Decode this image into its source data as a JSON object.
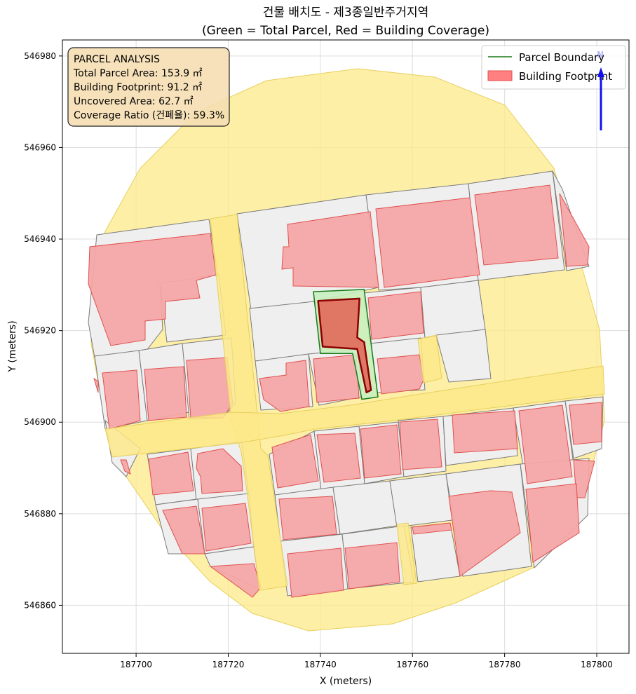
{
  "title": {
    "line1": "건물 배치도 - 제3종일반주거지역",
    "line2": "(Green = Total Parcel, Red = Building Coverage)"
  },
  "axes": {
    "xlabel": "X (meters)",
    "ylabel": "Y (meters)",
    "xlim": [
      187684,
      187807
    ],
    "ylim": [
      546849.5,
      546983.5
    ],
    "x_ticks": [
      187700,
      187720,
      187740,
      187760,
      187780,
      187800
    ],
    "y_ticks": [
      546860,
      546880,
      546900,
      546920,
      546940,
      546960,
      546980
    ],
    "x_tick_labels": [
      "187700",
      "187720",
      "187740",
      "187760",
      "187780",
      "187800"
    ],
    "y_tick_labels": [
      "546860",
      "546880",
      "546900",
      "546920",
      "546940",
      "546960",
      "546980"
    ]
  },
  "info_box": {
    "line1": "PARCEL ANALYSIS",
    "line2": "Total Parcel Area: 153.9 ㎡",
    "line3": "Building Footprint: 91.2 ㎡",
    "line4": "Uncovered Area: 62.7 ㎡",
    "line5": "Coverage Ratio (건폐율): 59.3%"
  },
  "legend": {
    "parcel_label": "Parcel Boundary",
    "building_label": "Building Footprint"
  },
  "north_arrow": {
    "label": "N"
  },
  "colors": {
    "road": "#fde98a",
    "parcel_fill": "#efefef",
    "parcel_edge": "#777777",
    "building_fill": "#f4a6a6",
    "building_edge": "#e05050",
    "target_parcel_fill": "#c8f0c0",
    "target_parcel_edge": "#1a7a1a",
    "target_building_fill": "#e07060",
    "target_building_edge": "#8b0000",
    "info_box_fill": "#f5deb3",
    "arrow": "#1010ee"
  },
  "chart_data": {
    "type": "map",
    "title": "건물 배치도 - 제3종일반주거지역 (Green = Total Parcel, Red = Building Coverage)",
    "xlabel": "X (meters)",
    "ylabel": "Y (meters)",
    "xlim": [
      187684,
      187807
    ],
    "ylim": [
      546849.5,
      546983.5
    ],
    "grid": true,
    "legend_position": "top-right",
    "series": [
      {
        "name": "Parcel Boundary",
        "color": "green"
      },
      {
        "name": "Building Footprint",
        "color": "red"
      }
    ],
    "analysis": {
      "total_parcel_area_m2": 153.9,
      "building_footprint_m2": 91.2,
      "uncovered_area_m2": 62.7,
      "coverage_ratio_pct": 59.3
    },
    "target_parcel": [
      [
        187738.5,
        546928.5
      ],
      [
        187749.5,
        546929
      ],
      [
        187752.5,
        546905.5
      ],
      [
        187749,
        546905
      ],
      [
        187747,
        546915
      ],
      [
        187740,
        546915
      ]
    ],
    "target_building": [
      [
        187739.5,
        546926.5
      ],
      [
        187748.5,
        546927
      ],
      [
        187748,
        546918.5
      ],
      [
        187749.5,
        546917.5
      ],
      [
        187751,
        546907
      ],
      [
        187750,
        546906.5
      ],
      [
        187748,
        546916
      ],
      [
        187740.5,
        546916.5
      ]
    ]
  }
}
